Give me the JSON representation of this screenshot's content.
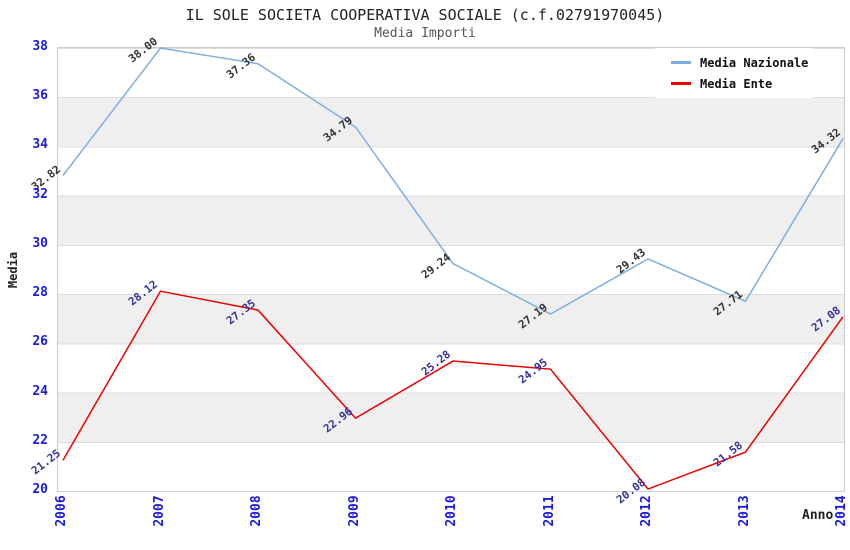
{
  "title": "IL SOLE SOCIETA COOPERATIVA SOCIALE (c.f.02791970045)",
  "subtitle": "Media Importi",
  "chart_data": {
    "type": "line",
    "x": [
      "2006",
      "2007",
      "2008",
      "2009",
      "2010",
      "2011",
      "2012",
      "2013",
      "2014"
    ],
    "xlabel": "Anno",
    "ylabel": "Media",
    "ylim": [
      20,
      38
    ],
    "ytick_step": 2,
    "grid": "alternating-horizontal-bands",
    "legend_position": "top-right",
    "series": [
      {
        "name": "Media Nazionale",
        "line_color": "#7cb0e2",
        "label_color": "#333333",
        "values": [
          32.82,
          38.0,
          37.36,
          34.79,
          29.24,
          27.19,
          29.43,
          27.71,
          34.32
        ]
      },
      {
        "name": "Media Ente",
        "line_color": "#ee0000",
        "label_color": "#333399",
        "values": [
          21.25,
          28.12,
          27.35,
          22.96,
          25.28,
          24.95,
          20.08,
          21.58,
          27.08
        ]
      }
    ]
  },
  "colors": {
    "axis_tick": "#1a1ae0",
    "band": "#efefef",
    "plot_border": "#cccccc",
    "title": "#222222",
    "subtitle": "#555555"
  }
}
